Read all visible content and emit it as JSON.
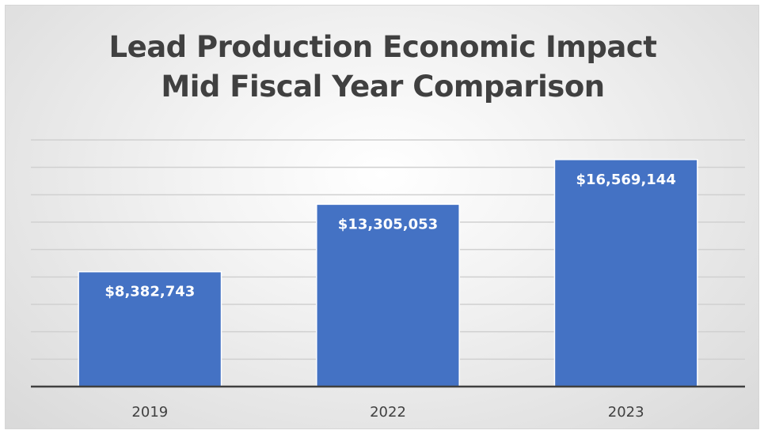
{
  "chart_data": {
    "type": "bar",
    "title": "Lead Production Economic Impact",
    "subtitle": "Mid Fiscal Year Comparison",
    "categories": [
      "2019",
      "2022",
      "2023"
    ],
    "values": [
      8382743,
      13305053,
      16569144
    ],
    "data_labels": [
      "$8,382,743",
      "$13,305,053",
      "$16,569,144"
    ],
    "ylim": [
      0,
      18000000
    ],
    "gridlines": true,
    "legend": "none",
    "colors": {
      "bar": "#4472C4",
      "bar_border": "#ffffff",
      "grid": "#d0d0d0",
      "axis": "#404040"
    }
  }
}
